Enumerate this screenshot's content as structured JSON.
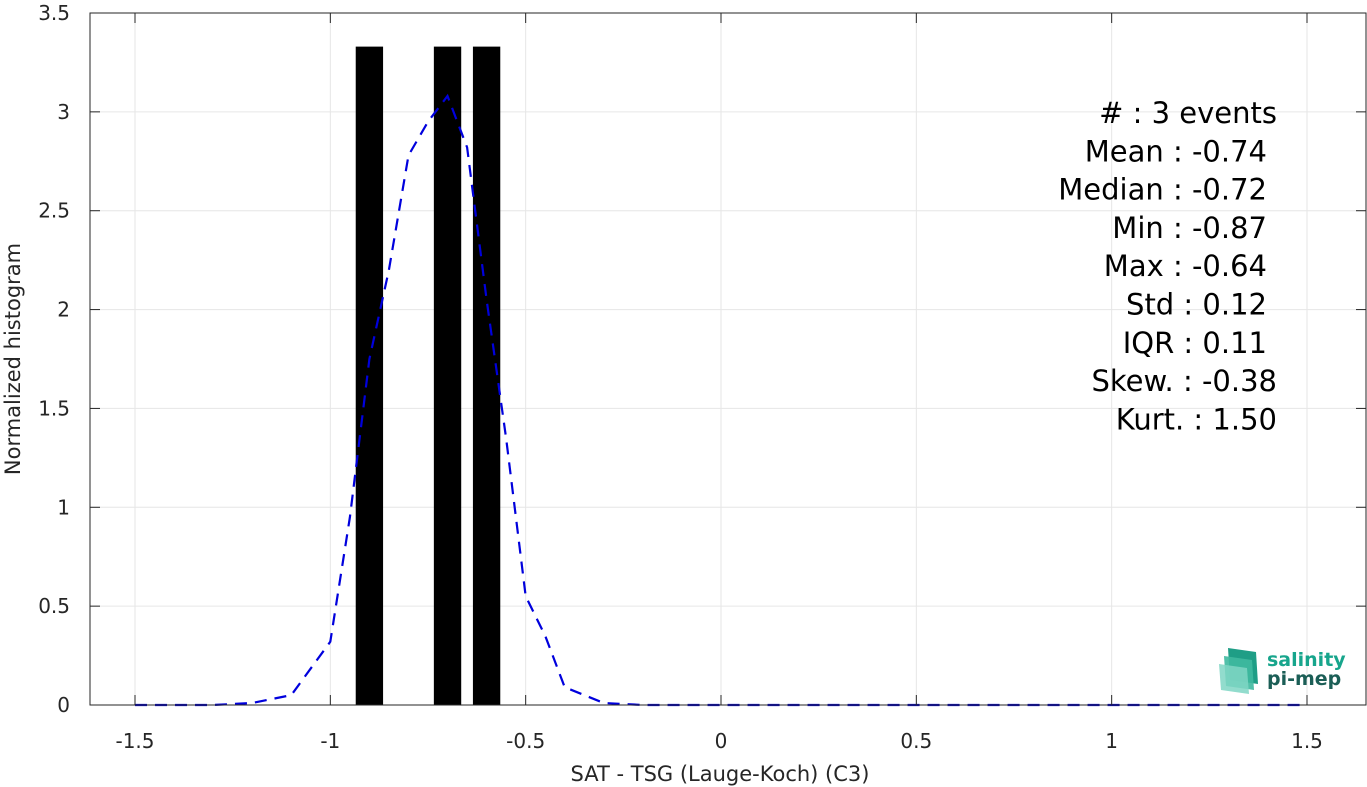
{
  "chart_data": {
    "type": "bar",
    "xlabel": "SAT - TSG (Lauge-Koch) (C3)",
    "ylabel": "Normalized histogram",
    "xlim": [
      -1.5,
      1.5
    ],
    "ylim": [
      0,
      3.5
    ],
    "grid": true,
    "x_ticks": [
      "-1.5",
      "-1",
      "-0.5",
      "0",
      "0.5",
      "1",
      "1.5"
    ],
    "y_ticks": [
      "0",
      "0.5",
      "1",
      "1.5",
      "2",
      "2.5",
      "3",
      "3.5"
    ],
    "bars": [
      {
        "left": -0.935,
        "right": -0.865,
        "value": 3.33
      },
      {
        "left": -0.735,
        "right": -0.665,
        "value": 3.33
      },
      {
        "left": -0.635,
        "right": -0.565,
        "value": 3.33
      }
    ],
    "bar_color": "#000000",
    "series": [
      {
        "style": "dashed",
        "color": "#0000dd",
        "x": [
          -1.5,
          -1.4,
          -1.3,
          -1.2,
          -1.1,
          -1.0,
          -0.95,
          -0.9,
          -0.85,
          -0.8,
          -0.75,
          -0.7,
          -0.65,
          -0.6,
          -0.55,
          -0.5,
          -0.45,
          -0.4,
          -0.3,
          -0.2,
          -0.1,
          0,
          0.5,
          1.0,
          1.5
        ],
        "values": [
          0,
          0,
          0,
          0.01,
          0.05,
          0.32,
          0.95,
          1.75,
          2.2,
          2.78,
          2.95,
          3.08,
          2.82,
          2.05,
          1.35,
          0.55,
          0.35,
          0.09,
          0.01,
          0,
          0,
          0,
          0,
          0,
          0
        ]
      }
    ],
    "annotations": [
      "#  : 3 events",
      "Mean : -0.74",
      "Median : -0.72",
      "Min : -0.87",
      "Max : -0.64",
      "Std : 0.12",
      "IQR : 0.11",
      "Skew. : -0.38",
      "Kurt. : 1.50"
    ]
  },
  "logo": {
    "line1": "salinity",
    "line2": "pi-mep"
  }
}
